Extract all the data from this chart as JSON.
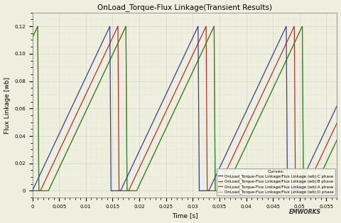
{
  "title": "OnLoad_Torque-Flux Linkage(Transient Results)",
  "xlabel": "Time [s]",
  "ylabel": "Flux Linkage [wb]",
  "xlim": [
    0,
    0.057
  ],
  "ylim": [
    -0.005,
    0.13
  ],
  "bg_color": "#efefdf",
  "grid_color": "#ccccbb",
  "legend_title": "Curves:",
  "legend_labels": [
    "OnLoad_Torque-Flux Linkage/Flux Linkage (wb):C phase",
    "OnLoad_Torque-Flux Linkage/Flux Linkage (wb):B phase",
    "OnLoad_Torque-Flux Linkage/Flux Linkage (wb):A phase",
    "OnLoad_Torque-Flux Linkage/Flux Linkage (wb):D phase"
  ],
  "colors": {
    "C": "#3c3c8c",
    "B": "#b03030",
    "A": "#308030",
    "D": "#c8b030"
  },
  "peak": 0.12,
  "period": 0.0165,
  "ramp_dur": 0.0145,
  "drop_dur": 0.0002,
  "phase_offsets": {
    "A": 0.003,
    "B": 0.018,
    "C": 0.033,
    "D": -0.0135
  },
  "xticks": [
    0,
    0.005,
    0.01,
    0.015,
    0.02,
    0.025,
    0.03,
    0.035,
    0.04,
    0.045,
    0.05,
    0.055
  ],
  "yticks": [
    0,
    0.02,
    0.04,
    0.06,
    0.08,
    0.1,
    0.12
  ]
}
